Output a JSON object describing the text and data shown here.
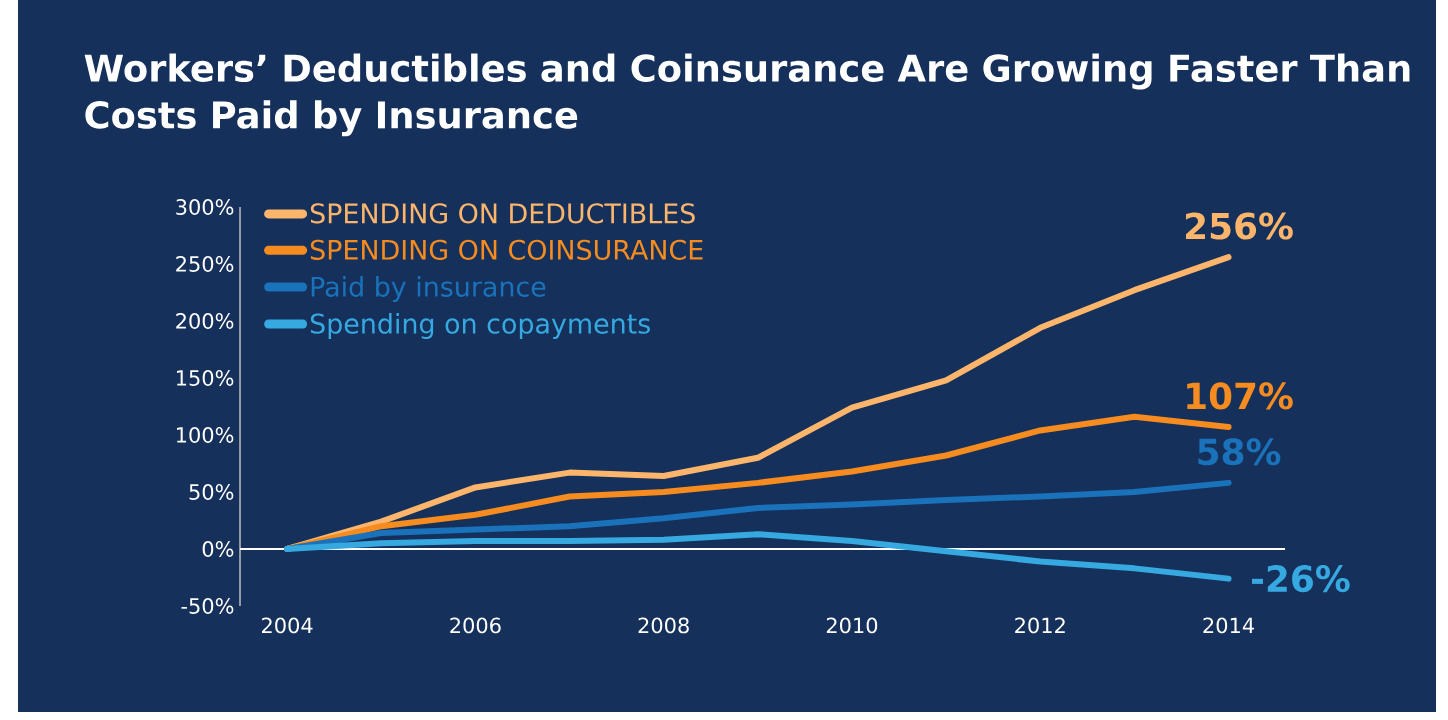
{
  "chart_data": {
    "type": "line",
    "title": "Workers’ Deductibles and Coinsurance Are Growing Faster Than Costs Paid by Insurance",
    "x": [
      2004,
      2005,
      2006,
      2007,
      2008,
      2009,
      2010,
      2011,
      2012,
      2013,
      2014
    ],
    "series": [
      {
        "name": "SPENDING ON DEDUCTIBLES",
        "color": "#fdb56b",
        "values": [
          0,
          24,
          54,
          67,
          64,
          80,
          124,
          148,
          194,
          227,
          256
        ],
        "value_labels": [
          null,
          null,
          null,
          null,
          null,
          null,
          null,
          null,
          null,
          null,
          "256%"
        ]
      },
      {
        "name": "SPENDING ON COINSURANCE",
        "color": "#f68b1f",
        "values": [
          0,
          20,
          30,
          46,
          50,
          58,
          68,
          82,
          104,
          116,
          107
        ],
        "value_labels": [
          null,
          null,
          null,
          null,
          null,
          null,
          null,
          null,
          null,
          null,
          "107%"
        ]
      },
      {
        "name": "Paid by insurance",
        "color": "#1a72bb",
        "values": [
          0,
          14,
          17,
          20,
          27,
          36,
          39,
          43,
          46,
          50,
          58
        ],
        "value_labels": [
          null,
          null,
          null,
          null,
          null,
          null,
          null,
          null,
          null,
          null,
          "58%"
        ]
      },
      {
        "name": "Spending on copayments",
        "color": "#36a9e1",
        "values": [
          0,
          5,
          7,
          7,
          8,
          13,
          7,
          -2,
          -11,
          -17,
          -26
        ],
        "value_labels": [
          null,
          null,
          null,
          null,
          null,
          null,
          null,
          null,
          null,
          null,
          "-26%"
        ]
      }
    ],
    "xlim": [
      2003.5,
      2014.6
    ],
    "xticks": [
      2004,
      2006,
      2008,
      2010,
      2012,
      2014
    ],
    "ylim": [
      -50,
      300
    ],
    "yticks": [
      {
        "value": -50,
        "label": "-50%"
      },
      {
        "value": 0,
        "label": "0%"
      },
      {
        "value": 50,
        "label": "50%"
      },
      {
        "value": 100,
        "label": "100%"
      },
      {
        "value": 150,
        "label": "150%"
      },
      {
        "value": 200,
        "label": "200%"
      },
      {
        "value": 250,
        "label": "250%"
      },
      {
        "value": 300,
        "label": "300%"
      }
    ],
    "ref_lines": [
      {
        "axis": "y",
        "value": 0,
        "color": "#ffffff"
      }
    ],
    "grid": false,
    "legend": "top left",
    "marker": "none",
    "line_style": "solid"
  }
}
